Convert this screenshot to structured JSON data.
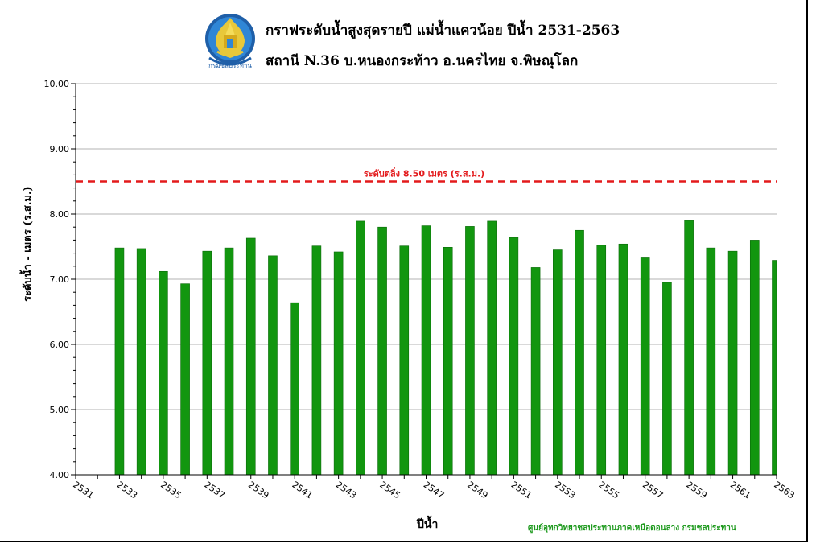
{
  "title": "กราฟระดับน้ำสูงสุดรายปี  แม่น้ำแควน้อย  ปีน้ำ 2531-2563",
  "subtitle": "สถานี N.36  บ.หนองกระท้าว  อ.นครไทย  จ.พิษณุโลก",
  "logo_text": "กรมชลประทาน",
  "credit": "ศูนย์อุทกวิทยาชลประทานภาคเหนือตอนล่าง  กรมชลประทาน",
  "colors": {
    "bar": "#12960f",
    "bar_edge": "#0b6a0a",
    "threshold": "#e31a1c",
    "grid": "#b3b3b3",
    "credit": "#1e9a1e"
  },
  "chart_data": {
    "type": "bar",
    "xlabel": "ปีน้ำ",
    "ylabel": "ระดับน้ำ  -  เมตร (ร.ส.ม.)",
    "ylim": [
      4.0,
      10.0
    ],
    "yticks": [
      "4.00",
      "5.00",
      "6.00",
      "7.00",
      "8.00",
      "9.00",
      "10.00"
    ],
    "xtick_labels": [
      "2531",
      "2533",
      "2535",
      "2537",
      "2539",
      "2541",
      "2543",
      "2545",
      "2547",
      "2549",
      "2551",
      "2553",
      "2555",
      "2557",
      "2559",
      "2561",
      "2563"
    ],
    "grid": true,
    "categories": [
      "2531",
      "2532",
      "2533",
      "2534",
      "2535",
      "2536",
      "2537",
      "2538",
      "2539",
      "2540",
      "2541",
      "2542",
      "2543",
      "2544",
      "2545",
      "2546",
      "2547",
      "2548",
      "2549",
      "2550",
      "2551",
      "2552",
      "2553",
      "2554",
      "2555",
      "2556",
      "2557",
      "2558",
      "2559",
      "2560",
      "2561",
      "2562",
      "2563"
    ],
    "values": [
      null,
      null,
      7.48,
      7.47,
      7.12,
      6.93,
      7.43,
      7.48,
      7.63,
      7.36,
      6.64,
      7.51,
      7.42,
      7.89,
      7.8,
      7.51,
      7.82,
      7.49,
      7.81,
      7.89,
      7.64,
      7.18,
      7.45,
      7.75,
      7.52,
      7.54,
      7.34,
      6.95,
      7.9,
      7.48,
      7.43,
      7.6,
      7.29
    ],
    "threshold": {
      "value": 8.5,
      "label": "ระดับตลิ่ง 8.50 เมตร (ร.ส.ม.)"
    }
  }
}
